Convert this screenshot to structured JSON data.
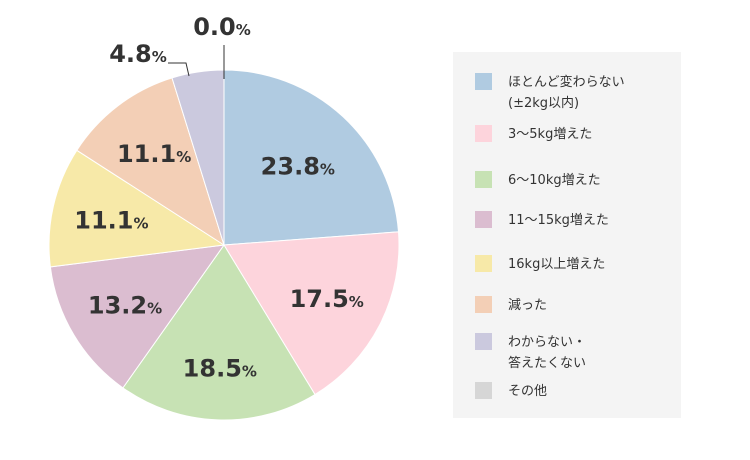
{
  "chart_data": {
    "type": "pie",
    "start": "top, clockwise",
    "unit": "%",
    "categories": [
      "ほとんど変わらない\n(±2kg以内)",
      "3〜5kg増えた",
      "6〜10kg増えた",
      "11〜15kg増えた",
      "16kg以上増えた",
      "減った",
      "わからない・\n答えたくない",
      "その他"
    ],
    "values": [
      23.8,
      17.5,
      18.5,
      13.2,
      11.1,
      11.1,
      4.8,
      0.0
    ],
    "labels": [
      "23.8",
      "17.5",
      "18.5",
      "13.2",
      "11.1",
      "11.1",
      "4.8",
      "0.0"
    ],
    "colors": [
      "#b0cbe1",
      "#fdd4dc",
      "#c7e2b4",
      "#dbbdd0",
      "#f7e9a8",
      "#f3cfb6",
      "#cbc9de",
      "#d6d6d6"
    ],
    "legend_position": "right"
  }
}
